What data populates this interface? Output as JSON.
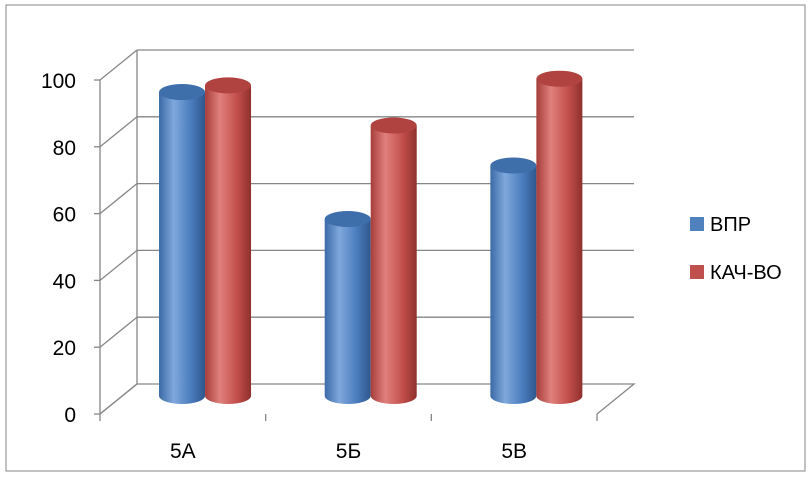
{
  "chart_data": {
    "type": "bar",
    "style": "3d-cylinder",
    "title": "",
    "xlabel": "",
    "ylabel": "",
    "categories": [
      "5А",
      "5Б",
      "5В"
    ],
    "series": [
      {
        "name": "ВПР",
        "values": [
          91,
          53,
          69
        ],
        "color": "#4F81BD"
      },
      {
        "name": "КАЧ-ВО",
        "values": [
          93,
          81,
          95
        ],
        "color": "#C0504D"
      }
    ],
    "ylim": [
      0,
      100
    ],
    "yticks": [
      0,
      20,
      40,
      60,
      80,
      100
    ],
    "grid": true,
    "legend_position": "right"
  }
}
